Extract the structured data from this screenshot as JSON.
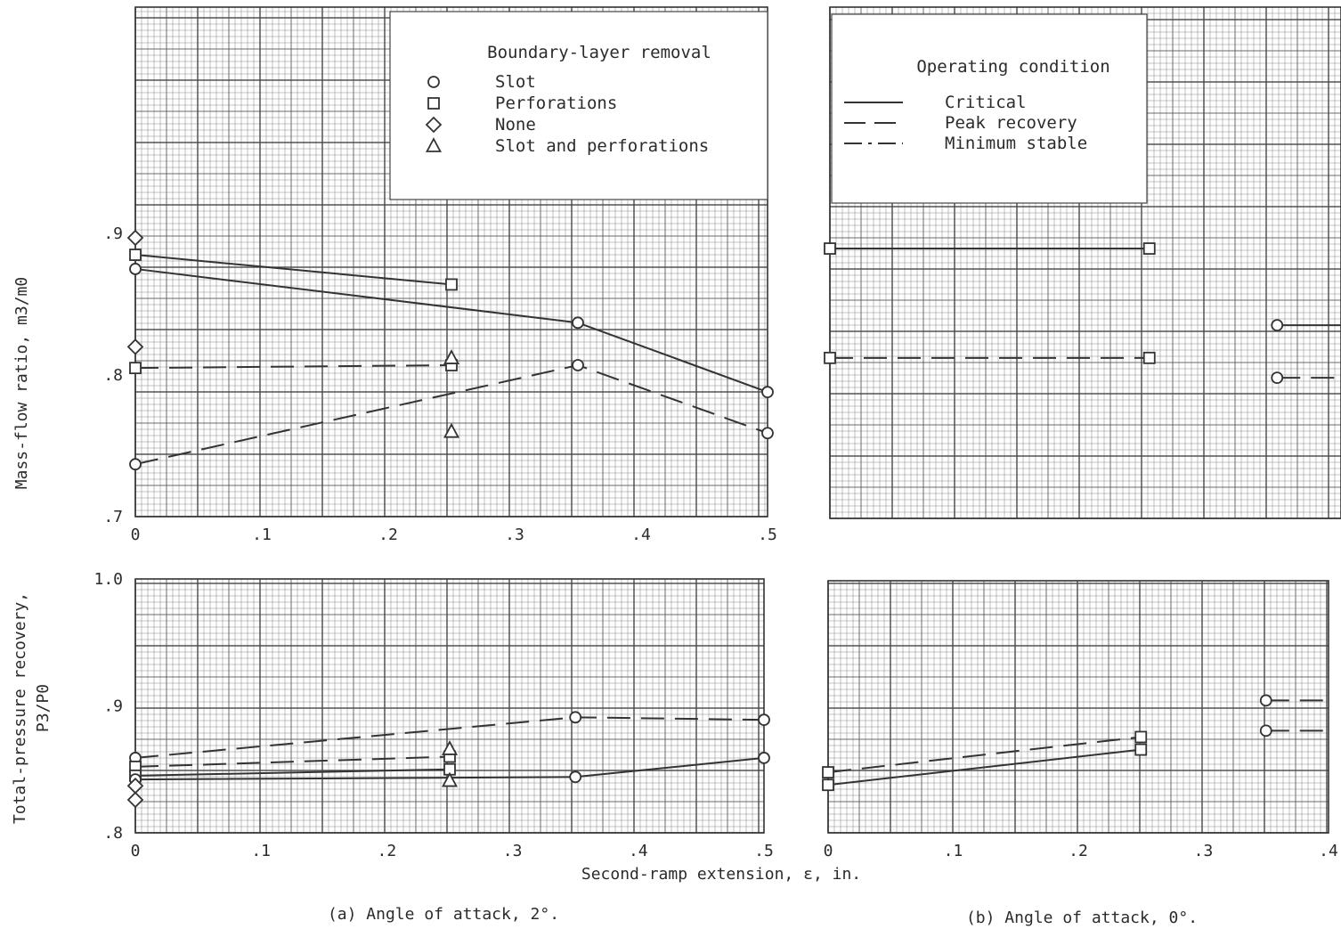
{
  "y_axis_titles": {
    "mass_flow": "Mass-flow ratio, m3/m0",
    "pressure_line1": "Total-pressure recovery,",
    "pressure_line2": "P3/P0"
  },
  "x_axis_title": "Second-ramp extension, ε, in.",
  "legend_boundary_layer": {
    "title": "Boundary-layer removal",
    "items": [
      {
        "symbol": "circle",
        "label": "Slot"
      },
      {
        "symbol": "square",
        "label": "Perforations"
      },
      {
        "symbol": "diamond",
        "label": "None"
      },
      {
        "symbol": "triangle",
        "label": "Slot and perforations"
      }
    ]
  },
  "legend_operating": {
    "title": "Operating condition",
    "items": [
      {
        "style": "solid",
        "label": "Critical"
      },
      {
        "style": "dashed",
        "label": "Peak recovery"
      },
      {
        "style": "dashdot",
        "label": "Minimum stable"
      }
    ]
  },
  "chart_data": [
    {
      "id": "a_mass",
      "type": "line",
      "panel_label": "",
      "xlim": [
        0,
        0.5
      ],
      "ylim": [
        0.7,
        1.06
      ],
      "x_ticks": [
        "0",
        ".1",
        ".2",
        ".3",
        ".4",
        ".5"
      ],
      "y_ticks": [
        {
          "v": 0.7,
          "label": ".7"
        },
        {
          "v": 0.8,
          "label": ".8"
        },
        {
          "v": 0.9,
          "label": ".9"
        }
      ],
      "series": [
        {
          "style": "solid",
          "symbol": "square",
          "x": [
            0,
            0.25
          ],
          "y": [
            0.885,
            0.864
          ]
        },
        {
          "style": "solid",
          "symbol": "circle",
          "x": [
            0,
            0.35,
            0.5
          ],
          "y": [
            0.875,
            0.837,
            0.788
          ]
        },
        {
          "style": "dashed",
          "symbol": "square",
          "x": [
            0,
            0.25
          ],
          "y": [
            0.805,
            0.807
          ]
        },
        {
          "style": "dashed",
          "symbol": "circle",
          "x": [
            0,
            0.35,
            0.5
          ],
          "y": [
            0.737,
            0.807,
            0.759
          ]
        }
      ],
      "points": [
        {
          "symbol": "diamond",
          "x": 0,
          "y": 0.897
        },
        {
          "symbol": "diamond",
          "x": 0,
          "y": 0.82
        },
        {
          "symbol": "triangle",
          "x": 0.25,
          "y": 0.812
        },
        {
          "symbol": "triangle",
          "x": 0.25,
          "y": 0.76
        }
      ]
    },
    {
      "id": "a_press",
      "type": "line",
      "panel_label": "(a) Angle of attack, 2°.",
      "xlim": [
        0,
        0.5
      ],
      "ylim": [
        0.8,
        1.0
      ],
      "x_ticks": [
        "0",
        ".1",
        ".2",
        ".3",
        ".4",
        ".5"
      ],
      "y_ticks": [
        {
          "v": 0.8,
          "label": ".8"
        },
        {
          "v": 0.9,
          "label": ".9"
        },
        {
          "v": 1.0,
          "label": "1.0"
        }
      ],
      "series": [
        {
          "style": "dashed",
          "symbol": "circle",
          "x": [
            0,
            0.35,
            0.5
          ],
          "y": [
            0.859,
            0.891,
            0.889
          ]
        },
        {
          "style": "dashed",
          "symbol": "square",
          "x": [
            0,
            0.25
          ],
          "y": [
            0.852,
            0.86
          ]
        },
        {
          "style": "solid",
          "symbol": "square",
          "x": [
            0,
            0.25
          ],
          "y": [
            0.845,
            0.85
          ]
        },
        {
          "style": "solid",
          "symbol": "circle",
          "x": [
            0,
            0.35,
            0.5
          ],
          "y": [
            0.842,
            0.844,
            0.859
          ]
        }
      ],
      "points": [
        {
          "symbol": "diamond",
          "x": 0,
          "y": 0.837
        },
        {
          "symbol": "diamond",
          "x": 0,
          "y": 0.826
        },
        {
          "symbol": "triangle",
          "x": 0.25,
          "y": 0.866
        },
        {
          "symbol": "triangle",
          "x": 0.25,
          "y": 0.841
        }
      ]
    },
    {
      "id": "b_mass",
      "type": "line",
      "panel_label": "",
      "xlim": [
        0,
        0.4
      ],
      "ylim": [
        0.7,
        1.06
      ],
      "x_ticks": [],
      "y_ticks": [],
      "series": [
        {
          "style": "solid",
          "symbol": "square",
          "x": [
            0,
            0.25
          ],
          "y": [
            0.89,
            0.89
          ]
        },
        {
          "style": "dashed",
          "symbol": "square",
          "x": [
            0,
            0.25
          ],
          "y": [
            0.813,
            0.813
          ]
        },
        {
          "style": "solid",
          "symbol": "circle",
          "x": [
            0.35,
            0.4
          ],
          "y": [
            0.836,
            0.836
          ]
        },
        {
          "style": "dashed",
          "symbol": "circle",
          "x": [
            0.35,
            0.4
          ],
          "y": [
            0.799,
            0.799
          ]
        }
      ],
      "points": []
    },
    {
      "id": "b_press",
      "type": "line",
      "panel_label": "(b) Angle of attack, 0°.",
      "xlim": [
        0,
        0.4
      ],
      "ylim": [
        0.8,
        1.0
      ],
      "x_ticks": [
        "0",
        ".1",
        ".2",
        ".3",
        ".4"
      ],
      "y_ticks": [],
      "series": [
        {
          "style": "dashed",
          "symbol": "square",
          "x": [
            0,
            0.25
          ],
          "y": [
            0.848,
            0.876
          ]
        },
        {
          "style": "solid",
          "symbol": "square",
          "x": [
            0,
            0.25
          ],
          "y": [
            0.838,
            0.866
          ]
        },
        {
          "style": "dashed",
          "symbol": "circle",
          "x": [
            0.35,
            0.4
          ],
          "y": [
            0.905,
            0.905
          ]
        },
        {
          "style": "dashed",
          "symbol": "circle",
          "x": [
            0.35,
            0.4
          ],
          "y": [
            0.881,
            0.881
          ]
        }
      ],
      "points": []
    }
  ]
}
